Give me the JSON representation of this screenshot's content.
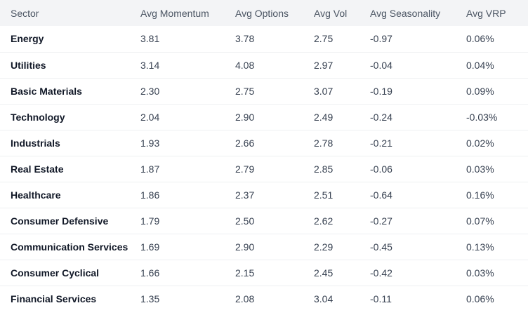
{
  "table": {
    "headers": [
      "Sector",
      "Avg Momentum",
      "Avg Options",
      "Avg Vol",
      "Avg Seasonality",
      "Avg VRP"
    ],
    "rows": [
      [
        "Energy",
        "3.81",
        "3.78",
        "2.75",
        "-0.97",
        "0.06%"
      ],
      [
        "Utilities",
        "3.14",
        "4.08",
        "2.97",
        "-0.04",
        "0.04%"
      ],
      [
        "Basic Materials",
        "2.30",
        "2.75",
        "3.07",
        "-0.19",
        "0.09%"
      ],
      [
        "Technology",
        "2.04",
        "2.90",
        "2.49",
        "-0.24",
        "-0.03%"
      ],
      [
        "Industrials",
        "1.93",
        "2.66",
        "2.78",
        "-0.21",
        "0.02%"
      ],
      [
        "Real Estate",
        "1.87",
        "2.79",
        "2.85",
        "-0.06",
        "0.03%"
      ],
      [
        "Healthcare",
        "1.86",
        "2.37",
        "2.51",
        "-0.64",
        "0.16%"
      ],
      [
        "Consumer Defensive",
        "1.79",
        "2.50",
        "2.62",
        "-0.27",
        "0.07%"
      ],
      [
        "Communication Services",
        "1.69",
        "2.90",
        "2.29",
        "-0.45",
        "0.13%"
      ],
      [
        "Consumer Cyclical",
        "1.66",
        "2.15",
        "2.45",
        "-0.42",
        "0.03%"
      ],
      [
        "Financial Services",
        "1.35",
        "2.08",
        "3.04",
        "-0.11",
        "0.06%"
      ]
    ]
  }
}
